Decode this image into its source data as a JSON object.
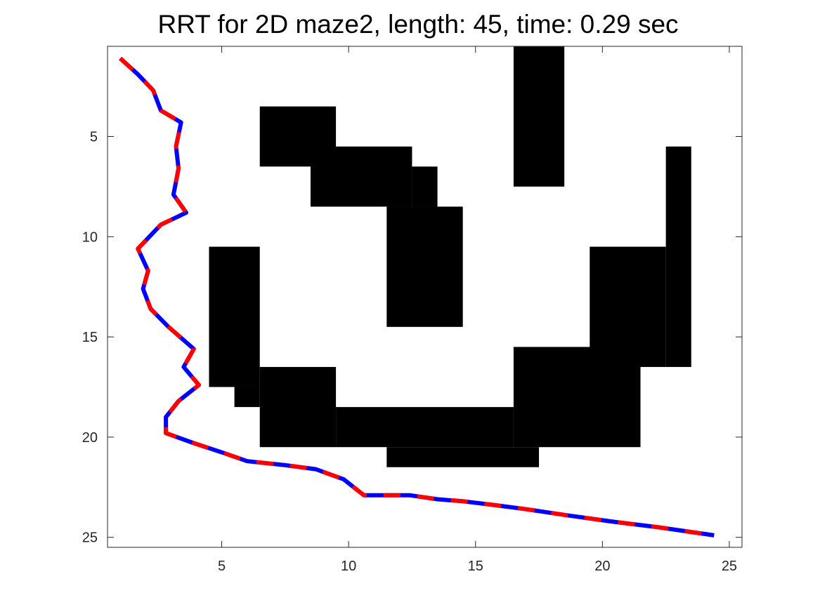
{
  "chart_data": {
    "type": "line",
    "title": "RRT for 2D maze2, length: 45, time: 0.29 sec",
    "xlabel": "",
    "ylabel": "",
    "xlim": [
      0.5,
      25.5
    ],
    "ylim": [
      0.5,
      25.5
    ],
    "y_reversed": true,
    "grid": false,
    "xticks": [
      5,
      10,
      15,
      20,
      25
    ],
    "yticks": [
      5,
      10,
      15,
      20,
      25
    ],
    "obstacles": {
      "color": "#000000",
      "rects": [
        {
          "x": [
            16.5,
            18.5
          ],
          "y": [
            0.5,
            7.5
          ]
        },
        {
          "x": [
            6.5,
            9.5
          ],
          "y": [
            3.5,
            6.5
          ]
        },
        {
          "x": [
            8.5,
            12.5
          ],
          "y": [
            5.5,
            8.5
          ]
        },
        {
          "x": [
            12.5,
            13.5
          ],
          "y": [
            6.5,
            8.5
          ]
        },
        {
          "x": [
            11.5,
            14.5
          ],
          "y": [
            8.5,
            14.5
          ]
        },
        {
          "x": [
            22.5,
            23.5
          ],
          "y": [
            5.5,
            16.5
          ]
        },
        {
          "x": [
            19.5,
            22.5
          ],
          "y": [
            10.5,
            16.5
          ]
        },
        {
          "x": [
            4.5,
            6.5
          ],
          "y": [
            10.5,
            17.5
          ]
        },
        {
          "x": [
            5.5,
            6.5
          ],
          "y": [
            17.5,
            18.5
          ]
        },
        {
          "x": [
            6.5,
            9.5
          ],
          "y": [
            16.5,
            20.5
          ]
        },
        {
          "x": [
            9.5,
            16.5
          ],
          "y": [
            18.5,
            20.5
          ]
        },
        {
          "x": [
            16.5,
            21.5
          ],
          "y": [
            15.5,
            20.5
          ]
        },
        {
          "x": [
            11.5,
            17.5
          ],
          "y": [
            20.5,
            21.5
          ]
        }
      ]
    },
    "path": {
      "colors": [
        "#ff0000",
        "#0000ff"
      ],
      "x": [
        1.0,
        1.7,
        2.3,
        2.6,
        3.4,
        3.2,
        3.3,
        3.1,
        3.6,
        2.6,
        1.7,
        2.1,
        1.9,
        2.2,
        2.9,
        3.9,
        3.5,
        4.1,
        3.3,
        2.8,
        2.8,
        3.9,
        5.1,
        6.0,
        7.5,
        8.7,
        9.8,
        10.6,
        11.5,
        12.4,
        13.5,
        14.5,
        15.8,
        17.0,
        18.6,
        20.3,
        22.2,
        24.4
      ],
      "y": [
        1.1,
        1.9,
        2.7,
        3.7,
        4.3,
        5.5,
        6.6,
        7.9,
        8.8,
        9.4,
        10.6,
        11.7,
        12.6,
        13.6,
        14.5,
        15.6,
        16.5,
        17.4,
        18.2,
        19.0,
        19.8,
        20.3,
        20.8,
        21.2,
        21.4,
        21.6,
        22.1,
        22.9,
        22.9,
        22.9,
        23.1,
        23.2,
        23.4,
        23.6,
        23.9,
        24.2,
        24.5,
        24.9
      ]
    }
  }
}
